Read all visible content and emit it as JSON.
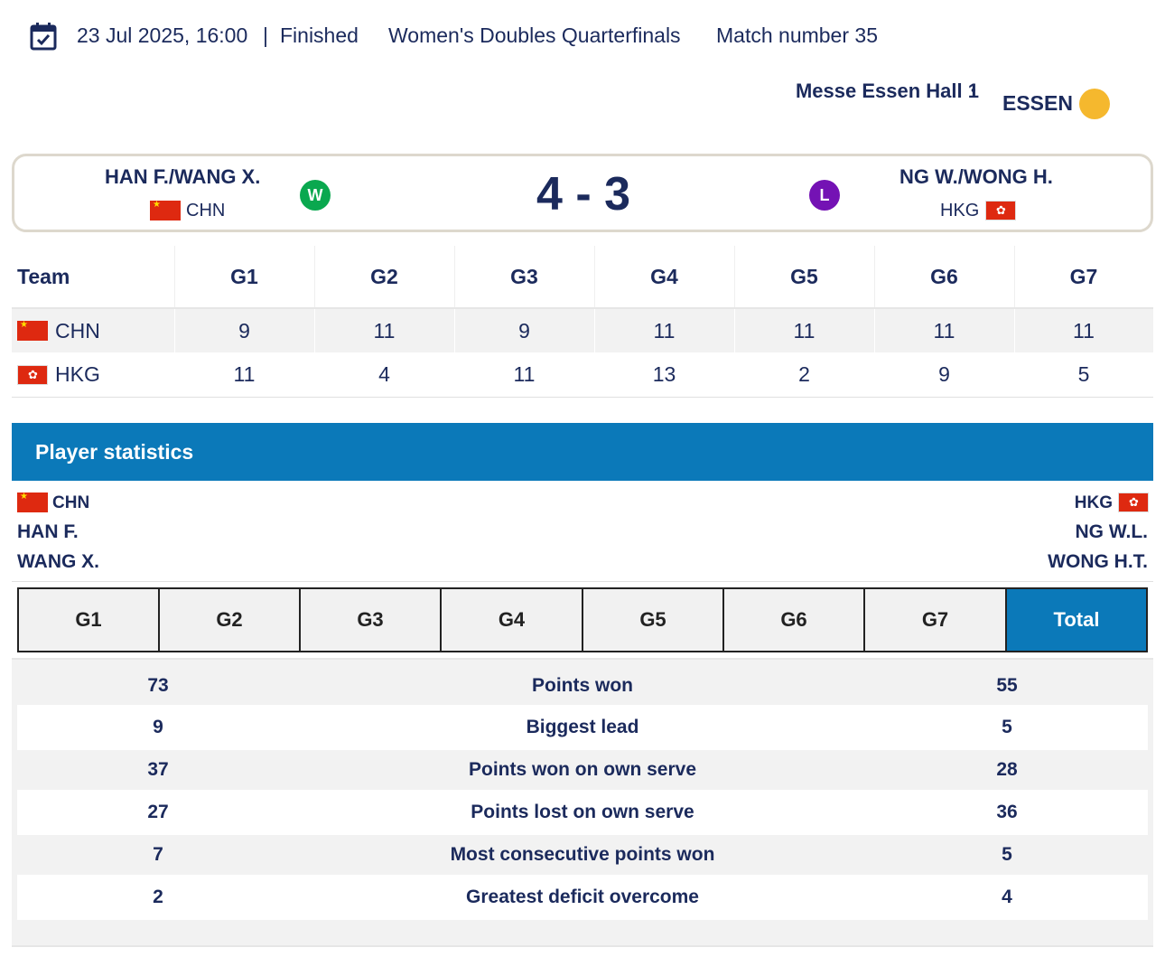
{
  "match": {
    "date_time": "23 Jul 2025, 16:00",
    "separator": "|",
    "status": "Finished",
    "event": "Women's Doubles Quarterfinals",
    "match_number": "Match number 35",
    "venue": "Messe Essen Hall 1",
    "venue_dot": "•",
    "city": "ESSEN",
    "icons": {
      "calendar": "calendar-check-icon",
      "weather": "sun-icon"
    }
  },
  "scorecard": {
    "home": {
      "name": "HAN F./WANG X.",
      "code": "CHN",
      "result": "W",
      "result_color": "#0aa84f"
    },
    "away": {
      "name": "NG W./WONG H.",
      "code": "HKG",
      "result": "L",
      "result_color": "#7412b4"
    },
    "score": "4 - 3"
  },
  "games_table": {
    "headers": [
      "Team",
      "G1",
      "G2",
      "G3",
      "G4",
      "G5",
      "G6",
      "G7"
    ],
    "rows": [
      {
        "team": "CHN",
        "scores": [
          "9",
          "11",
          "9",
          "11",
          "11",
          "11",
          "11"
        ]
      },
      {
        "team": "HKG",
        "scores": [
          "11",
          "4",
          "11",
          "13",
          "2",
          "9",
          "5"
        ]
      }
    ]
  },
  "player_statistics": {
    "title": "Player statistics",
    "left": {
      "code": "CHN",
      "players": [
        "HAN F.",
        "WANG X."
      ]
    },
    "right": {
      "code": "HKG",
      "players": [
        "NG W.L.",
        "WONG H.T."
      ]
    },
    "tabs": [
      "G1",
      "G2",
      "G3",
      "G4",
      "G5",
      "G6",
      "G7",
      "Total"
    ],
    "active_tab": "Total",
    "rows": [
      {
        "left": "73",
        "label": "Points won",
        "right": "55"
      },
      {
        "left": "9",
        "label": "Biggest lead",
        "right": "5"
      },
      {
        "left": "37",
        "label": "Points won on own serve",
        "right": "28"
      },
      {
        "left": "27",
        "label": "Points lost on own serve",
        "right": "36"
      },
      {
        "left": "7",
        "label": "Most consecutive points won",
        "right": "5"
      },
      {
        "left": "2",
        "label": "Greatest deficit overcome",
        "right": "4"
      }
    ]
  },
  "colors": {
    "navy": "#1b2a5c",
    "accent_blue": "#0b79b9",
    "win_green": "#0aa84f",
    "loss_purple": "#7412b4",
    "sun": "#f5b82e"
  }
}
